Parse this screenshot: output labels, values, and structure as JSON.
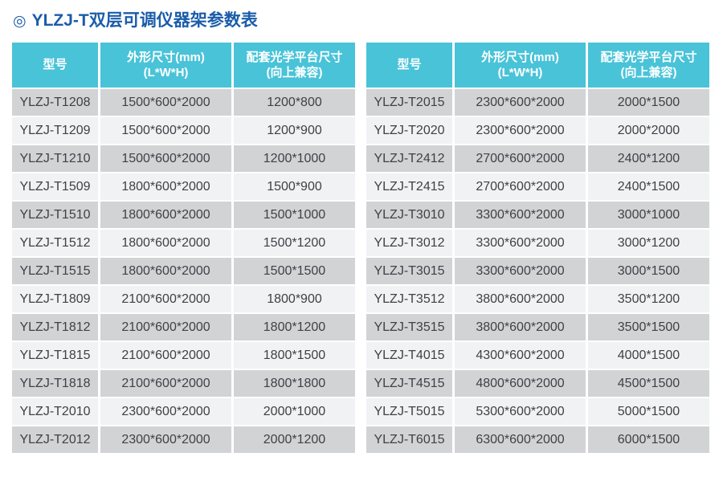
{
  "header": {
    "icon": "◎",
    "title": "YLZJ-T双层可调仪器架参数表"
  },
  "colors": {
    "header_bg": "#49c3d8",
    "row_odd": "#d2d3d5",
    "row_even": "#f1f2f4",
    "title_color": "#1b5caa",
    "cell_text": "#3e4146",
    "header_text": "#ffffff"
  },
  "columns": [
    {
      "title": "型号",
      "subtitle": ""
    },
    {
      "title": "外形尺寸(mm)",
      "subtitle": "(L*W*H)"
    },
    {
      "title": "配套光学平台尺寸",
      "subtitle": "(向上兼容)"
    }
  ],
  "left_table": {
    "rows": [
      {
        "model": "YLZJ-T1208",
        "size": "1500*600*2000",
        "platform": "1200*800"
      },
      {
        "model": "YLZJ-T1209",
        "size": "1500*600*2000",
        "platform": "1200*900"
      },
      {
        "model": "YLZJ-T1210",
        "size": "1500*600*2000",
        "platform": "1200*1000"
      },
      {
        "model": "YLZJ-T1509",
        "size": "1800*600*2000",
        "platform": "1500*900"
      },
      {
        "model": "YLZJ-T1510",
        "size": "1800*600*2000",
        "platform": "1500*1000"
      },
      {
        "model": "YLZJ-T1512",
        "size": "1800*600*2000",
        "platform": "1500*1200"
      },
      {
        "model": "YLZJ-T1515",
        "size": "1800*600*2000",
        "platform": "1500*1500"
      },
      {
        "model": "YLZJ-T1809",
        "size": "2100*600*2000",
        "platform": "1800*900"
      },
      {
        "model": "YLZJ-T1812",
        "size": "2100*600*2000",
        "platform": "1800*1200"
      },
      {
        "model": "YLZJ-T1815",
        "size": "2100*600*2000",
        "platform": "1800*1500"
      },
      {
        "model": "YLZJ-T1818",
        "size": "2100*600*2000",
        "platform": "1800*1800"
      },
      {
        "model": "YLZJ-T2010",
        "size": "2300*600*2000",
        "platform": "2000*1000"
      },
      {
        "model": "YLZJ-T2012",
        "size": "2300*600*2000",
        "platform": "2000*1200"
      }
    ]
  },
  "right_table": {
    "rows": [
      {
        "model": "YLZJ-T2015",
        "size": "2300*600*2000",
        "platform": "2000*1500"
      },
      {
        "model": "YLZJ-T2020",
        "size": "2300*600*2000",
        "platform": "2000*2000"
      },
      {
        "model": "YLZJ-T2412",
        "size": "2700*600*2000",
        "platform": "2400*1200"
      },
      {
        "model": "YLZJ-T2415",
        "size": "2700*600*2000",
        "platform": "2400*1500"
      },
      {
        "model": "YLZJ-T3010",
        "size": "3300*600*2000",
        "platform": "3000*1000"
      },
      {
        "model": "YLZJ-T3012",
        "size": "3300*600*2000",
        "platform": "3000*1200"
      },
      {
        "model": "YLZJ-T3015",
        "size": "3300*600*2000",
        "platform": "3000*1500"
      },
      {
        "model": "YLZJ-T3512",
        "size": "3800*600*2000",
        "platform": "3500*1200"
      },
      {
        "model": "YLZJ-T3515",
        "size": "3800*600*2000",
        "platform": "3500*1500"
      },
      {
        "model": "YLZJ-T4015",
        "size": "4300*600*2000",
        "platform": "4000*1500"
      },
      {
        "model": "YLZJ-T4515",
        "size": "4800*600*2000",
        "platform": "4500*1500"
      },
      {
        "model": "YLZJ-T5015",
        "size": "5300*600*2000",
        "platform": "5000*1500"
      },
      {
        "model": "YLZJ-T6015",
        "size": "6300*600*2000",
        "platform": "6000*1500"
      }
    ]
  }
}
